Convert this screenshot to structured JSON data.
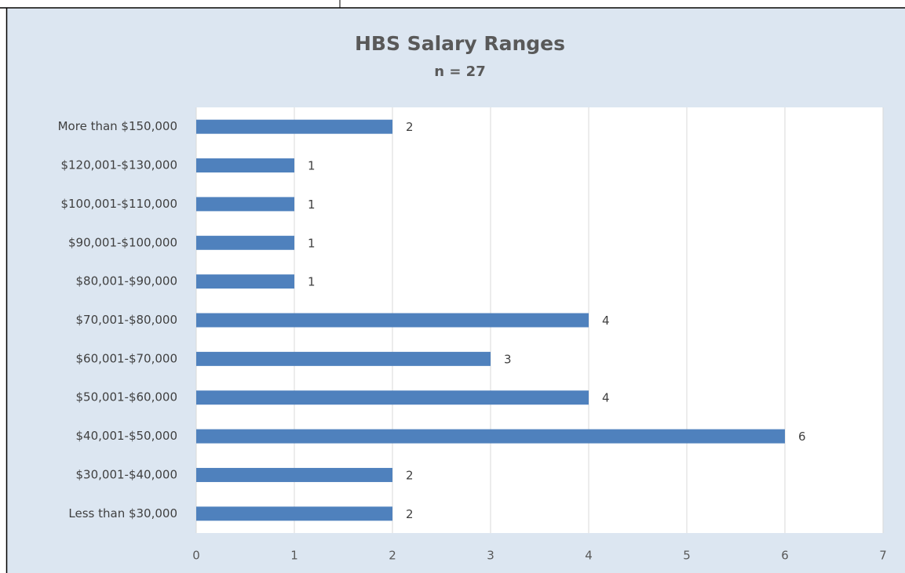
{
  "chart_data": {
    "type": "bar",
    "orientation": "horizontal",
    "title": "HBS Salary Ranges",
    "subtitle": "n = 27",
    "categories": [
      "More than $150,000",
      "$120,001-$130,000",
      "$100,001-$110,000",
      "$90,001-$100,000",
      "$80,001-$90,000",
      "$70,001-$80,000",
      "$60,001-$70,000",
      "$50,001-$60,000",
      "$40,001-$50,000",
      "$30,001-$40,000",
      "Less than $30,000"
    ],
    "values": [
      2,
      1,
      1,
      1,
      1,
      4,
      3,
      4,
      6,
      2,
      2
    ],
    "color": "#4f81bd",
    "xlim": [
      0,
      7
    ],
    "xticks": [
      0,
      1,
      2,
      3,
      4,
      5,
      6,
      7
    ],
    "grid": true
  }
}
